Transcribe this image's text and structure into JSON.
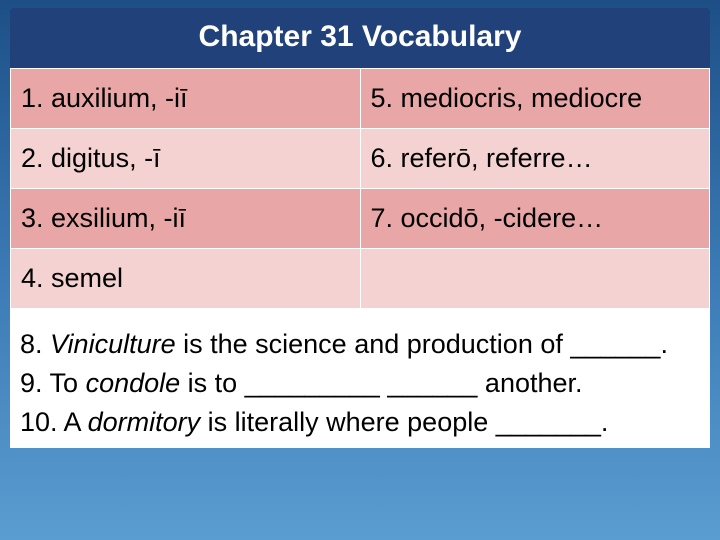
{
  "header": {
    "title": "Chapter 31 Vocabulary",
    "title_fontsize": 30,
    "bg_color": "#20417a",
    "text_color": "#ffffff"
  },
  "colors": {
    "row_dark": "#e9a6a6",
    "row_light": "#f4d2d2",
    "row_white": "#ffffff",
    "border": "#ffffff",
    "page_bg_gradient": [
      "#1d4f86",
      "#3b7ab5",
      "#5a9dd0"
    ],
    "body_text": "#000000"
  },
  "vocab_table": {
    "type": "table",
    "columns": 2,
    "col_widths": [
      "50%",
      "50%"
    ],
    "rows": [
      {
        "band": "dark",
        "left": "1. auxilium, -iī",
        "right": "5. mediocris, mediocre"
      },
      {
        "band": "light",
        "left": "2. digitus, -ī",
        "right": "6. referō, referre…"
      },
      {
        "band": "dark",
        "left": "3. exsilium, -iī",
        "right": "7. occidō, -cidere…"
      },
      {
        "band": "light",
        "left": "4. semel",
        "right": ""
      }
    ],
    "cell_fontsize": 27
  },
  "sentences": {
    "fontsize": 27,
    "items": {
      "s8_pre": "8. ",
      "s8_it": "Viniculture",
      "s8_post": " is the science and production of ______.",
      "s9_pre": "9. To ",
      "s9_it": "condole",
      "s9_post": " is to _________   ______ another.",
      "s10_pre": "10. A ",
      "s10_it": "dormitory",
      "s10_post": " is literally where people _______."
    }
  }
}
